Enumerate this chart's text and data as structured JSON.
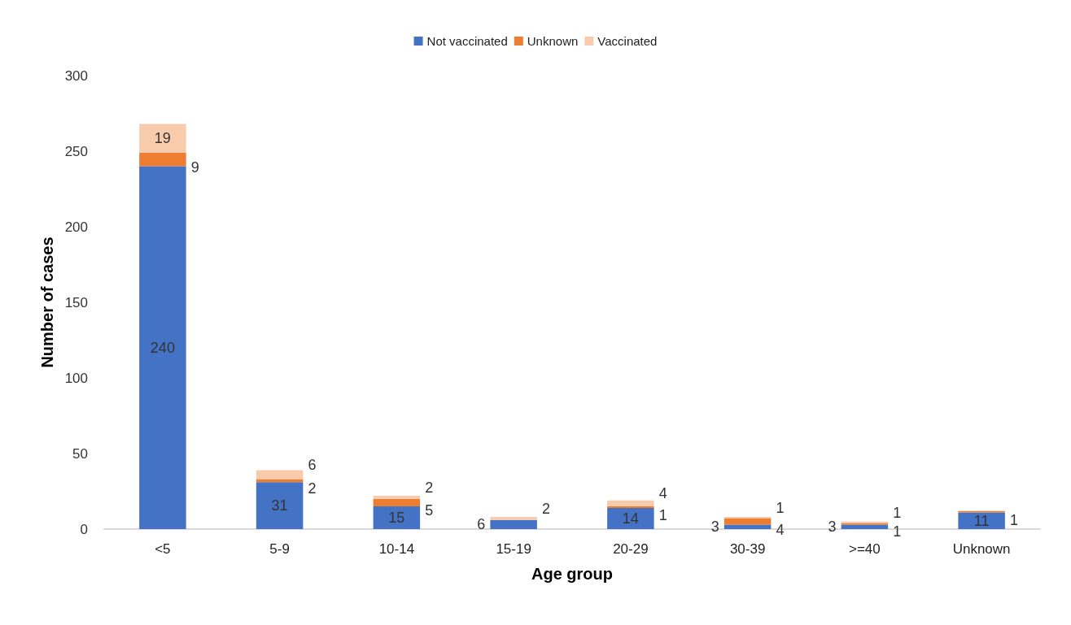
{
  "chart_data": {
    "type": "bar",
    "stacked": true,
    "xlabel": "Age group",
    "ylabel": "Number of cases",
    "categories": [
      "<5",
      "5-9",
      "10-14",
      "15-19",
      "20-29",
      "30-39",
      ">=40",
      "Unknown"
    ],
    "series": [
      {
        "name": "Not vaccinated",
        "color": "#4472c4",
        "values": [
          240,
          31,
          15,
          6,
          14,
          3,
          3,
          11
        ]
      },
      {
        "name": "Unknown",
        "color": "#ed7d31",
        "values": [
          9,
          2,
          5,
          null,
          1,
          4,
          1,
          1
        ]
      },
      {
        "name": "Vaccinated",
        "color": "#f8cbad",
        "values": [
          19,
          6,
          2,
          2,
          4,
          1,
          1,
          null
        ]
      }
    ],
    "ylim": [
      0,
      300
    ],
    "yticks": [
      0,
      50,
      100,
      150,
      200,
      250,
      300
    ],
    "grid": false,
    "legend": "top",
    "data_labels": true
  }
}
